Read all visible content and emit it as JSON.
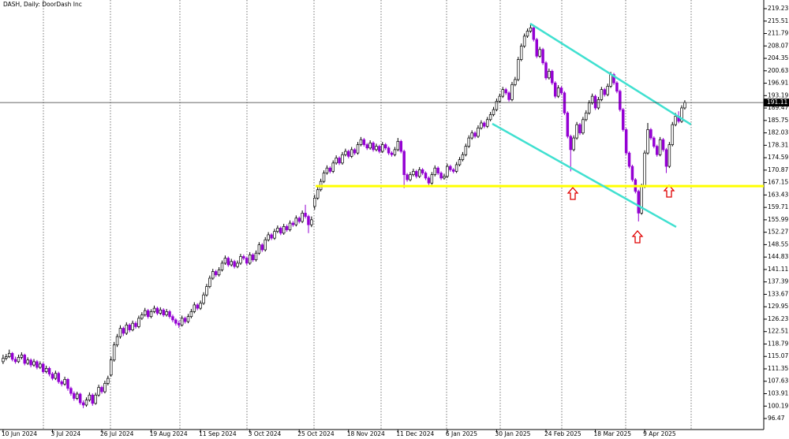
{
  "chart_data": {
    "type": "candlestick",
    "title": "DASH, Daily: DoorDash Inc",
    "up_color": "#ffffff",
    "down_color": "#9400d3",
    "wick_color": "#000000",
    "xlim": [
      -1,
      246.6
    ],
    "xticks": [
      {
        "value": 0,
        "label": "10 Jun 2024"
      },
      {
        "value": 16,
        "label": "3 Jul 2024"
      },
      {
        "value": 32,
        "label": "26 Jul 2024"
      },
      {
        "value": 48,
        "label": "19 Aug 2024"
      },
      {
        "value": 64,
        "label": "11 Sep 2024"
      },
      {
        "value": 80,
        "label": "3 Oct 2024"
      },
      {
        "value": 96,
        "label": "25 Oct 2024"
      },
      {
        "value": 112,
        "label": "18 Nov 2024"
      },
      {
        "value": 128,
        "label": "11 Dec 2024"
      },
      {
        "value": 144,
        "label": "6 Jan 2025"
      },
      {
        "value": 160,
        "label": "30 Jan 2025"
      },
      {
        "value": 176,
        "label": "24 Feb 2025"
      },
      {
        "value": 192,
        "label": "18 Mar 2025"
      },
      {
        "value": 208,
        "label": "9 Apr 2025"
      }
    ],
    "ylim": [
      93.17,
      221.83
    ],
    "yticks": [
      219.23,
      215.51,
      211.79,
      208.07,
      204.35,
      200.63,
      196.91,
      193.19,
      189.47,
      185.75,
      182.03,
      178.31,
      174.59,
      170.87,
      167.15,
      163.43,
      159.71,
      155.99,
      152.27,
      148.55,
      144.83,
      141.11,
      137.39,
      133.67,
      129.95,
      126.23,
      122.51,
      118.79,
      115.07,
      111.35,
      107.63,
      103.91,
      100.19,
      96.47
    ],
    "last_price": 191.11,
    "level": {
      "value": 166.1,
      "color": "#ffff00"
    },
    "trendlines": [
      {
        "color": "#40e0d0",
        "x": [
          170.9,
          223.0
        ],
        "y": [
          214.75,
          184.54
        ]
      },
      {
        "color": "#40e0d0",
        "x": [
          158.6,
          218.2
        ],
        "y": [
          184.77,
          153.85
        ]
      }
    ],
    "candles": [
      [
        113.5,
        115.6,
        112.8,
        114.5
      ],
      [
        114.5,
        115.8,
        113.9,
        115.0
      ],
      [
        115.0,
        117.1,
        114.6,
        116.0
      ],
      [
        116.0,
        116.4,
        113.6,
        114.2
      ],
      [
        114.2,
        115.0,
        112.9,
        113.5
      ],
      [
        113.5,
        115.6,
        113.1,
        114.8
      ],
      [
        114.8,
        116.3,
        114.2,
        115.5
      ],
      [
        115.5,
        115.9,
        112.4,
        113.0
      ],
      [
        113.0,
        114.8,
        112.5,
        114.0
      ],
      [
        114.0,
        114.5,
        111.8,
        112.5
      ],
      [
        112.5,
        114.3,
        112.0,
        113.5
      ],
      [
        113.5,
        114.0,
        111.2,
        111.8
      ],
      [
        111.8,
        113.6,
        111.3,
        112.8
      ],
      [
        112.8,
        113.2,
        109.9,
        110.5
      ],
      [
        110.5,
        112.3,
        110.0,
        111.5
      ],
      [
        111.5,
        112.0,
        109.1,
        109.8
      ],
      [
        109.8,
        110.4,
        107.9,
        108.5
      ],
      [
        108.5,
        110.8,
        108.0,
        110.0
      ],
      [
        110.0,
        110.5,
        106.9,
        107.5
      ],
      [
        107.5,
        108.0,
        106.1,
        106.8
      ],
      [
        106.8,
        109.0,
        106.3,
        108.2
      ],
      [
        108.2,
        108.6,
        104.8,
        105.5
      ],
      [
        105.5,
        106.0,
        103.3,
        104.0
      ],
      [
        104.0,
        104.6,
        101.8,
        102.5
      ],
      [
        102.5,
        104.5,
        102.0,
        103.8
      ],
      [
        103.8,
        104.2,
        100.6,
        101.2
      ],
      [
        101.2,
        101.9,
        99.6,
        100.5
      ],
      [
        100.5,
        102.8,
        100.0,
        102.0
      ],
      [
        102.0,
        104.3,
        101.5,
        103.5
      ],
      [
        103.5,
        104.0,
        100.3,
        101.0
      ],
      [
        101.0,
        104.2,
        100.6,
        103.5
      ],
      [
        103.5,
        106.6,
        103.0,
        105.8
      ],
      [
        105.8,
        106.3,
        103.9,
        104.5
      ],
      [
        104.5,
        107.8,
        104.0,
        107.0
      ],
      [
        107.0,
        109.3,
        106.4,
        108.5
      ],
      [
        109.5,
        115.0,
        109.0,
        114.0
      ],
      [
        114.0,
        119.4,
        113.5,
        118.5
      ],
      [
        118.5,
        121.8,
        117.9,
        121.0
      ],
      [
        121.0,
        124.4,
        120.4,
        123.5
      ],
      [
        123.5,
        124.0,
        121.2,
        122.0
      ],
      [
        122.0,
        125.3,
        121.5,
        124.5
      ],
      [
        124.5,
        125.0,
        122.3,
        123.0
      ],
      [
        123.0,
        125.8,
        122.6,
        125.0
      ],
      [
        125.0,
        125.6,
        123.4,
        124.0
      ],
      [
        124.0,
        127.3,
        123.5,
        126.5
      ],
      [
        126.5,
        128.3,
        126.0,
        127.5
      ],
      [
        127.5,
        129.6,
        127.0,
        128.8
      ],
      [
        128.8,
        129.3,
        126.4,
        127.0
      ],
      [
        127.0,
        129.2,
        126.5,
        128.5
      ],
      [
        128.5,
        130.3,
        128.0,
        129.5
      ],
      [
        129.5,
        130.0,
        127.4,
        128.0
      ],
      [
        128.0,
        129.8,
        127.5,
        129.0
      ],
      [
        129.0,
        129.5,
        126.9,
        127.5
      ],
      [
        127.5,
        129.3,
        127.0,
        128.5
      ],
      [
        128.5,
        129.0,
        126.4,
        127.0
      ],
      [
        127.0,
        127.6,
        125.3,
        126.0
      ],
      [
        126.0,
        126.5,
        124.3,
        125.0
      ],
      [
        125.0,
        125.8,
        123.6,
        124.5
      ],
      [
        124.5,
        127.3,
        124.0,
        126.5
      ],
      [
        126.5,
        127.0,
        124.9,
        125.5
      ],
      [
        125.5,
        127.8,
        125.0,
        127.0
      ],
      [
        127.0,
        129.3,
        126.5,
        128.5
      ],
      [
        128.5,
        131.3,
        128.0,
        130.5
      ],
      [
        130.5,
        131.0,
        128.9,
        129.5
      ],
      [
        129.5,
        131.8,
        129.0,
        131.0
      ],
      [
        131.0,
        134.3,
        130.5,
        133.5
      ],
      [
        133.5,
        136.8,
        133.0,
        136.0
      ],
      [
        136.0,
        139.3,
        135.5,
        138.5
      ],
      [
        138.5,
        141.3,
        138.0,
        140.5
      ],
      [
        140.5,
        141.0,
        138.9,
        139.5
      ],
      [
        139.5,
        141.8,
        139.0,
        141.0
      ],
      [
        141.0,
        143.8,
        140.5,
        143.0
      ],
      [
        143.0,
        145.3,
        142.5,
        144.5
      ],
      [
        144.5,
        145.0,
        141.9,
        142.5
      ],
      [
        142.5,
        144.3,
        142.0,
        143.5
      ],
      [
        143.5,
        144.0,
        141.4,
        142.0
      ],
      [
        142.0,
        143.8,
        141.5,
        143.0
      ],
      [
        143.0,
        145.8,
        142.5,
        145.0
      ],
      [
        145.0,
        145.6,
        143.9,
        144.5
      ],
      [
        144.5,
        145.0,
        142.4,
        143.0
      ],
      [
        143.0,
        146.3,
        142.5,
        145.5
      ],
      [
        145.5,
        146.0,
        143.4,
        144.0
      ],
      [
        144.0,
        146.8,
        143.5,
        146.0
      ],
      [
        146.0,
        149.3,
        145.5,
        148.5
      ],
      [
        148.5,
        149.0,
        146.4,
        147.0
      ],
      [
        147.0,
        150.8,
        146.5,
        150.0
      ],
      [
        150.0,
        152.3,
        149.5,
        151.5
      ],
      [
        151.5,
        152.0,
        149.9,
        150.5
      ],
      [
        150.5,
        153.3,
        150.0,
        152.5
      ],
      [
        152.5,
        154.3,
        152.0,
        153.5
      ],
      [
        153.5,
        154.0,
        151.4,
        152.0
      ],
      [
        152.0,
        154.8,
        151.5,
        154.0
      ],
      [
        154.0,
        154.6,
        152.4,
        153.0
      ],
      [
        153.0,
        155.8,
        152.5,
        155.0
      ],
      [
        155.0,
        155.6,
        153.9,
        154.5
      ],
      [
        154.5,
        157.3,
        154.0,
        156.5
      ],
      [
        156.5,
        157.0,
        154.9,
        155.5
      ],
      [
        155.5,
        158.8,
        155.0,
        158.0
      ],
      [
        158.0,
        160.5,
        156.4,
        157.0
      ],
      [
        157.0,
        157.5,
        152.0,
        154.5
      ],
      [
        154.5,
        157.0,
        153.8,
        156.0
      ],
      [
        160.0,
        163.5,
        159.0,
        162.5
      ],
      [
        162.5,
        165.8,
        162.0,
        165.0
      ],
      [
        165.0,
        168.3,
        164.5,
        167.5
      ],
      [
        167.5,
        170.8,
        167.0,
        170.0
      ],
      [
        170.0,
        172.3,
        169.5,
        171.5
      ],
      [
        171.5,
        172.0,
        169.9,
        170.5
      ],
      [
        170.5,
        173.8,
        170.0,
        173.0
      ],
      [
        173.0,
        175.3,
        172.5,
        174.5
      ],
      [
        174.5,
        175.0,
        172.4,
        173.0
      ],
      [
        173.0,
        176.3,
        172.5,
        175.5
      ],
      [
        175.5,
        177.3,
        175.0,
        176.5
      ],
      [
        176.5,
        177.0,
        174.4,
        175.0
      ],
      [
        175.0,
        177.8,
        174.5,
        177.0
      ],
      [
        177.0,
        177.5,
        175.4,
        176.0
      ],
      [
        176.0,
        179.3,
        175.5,
        178.5
      ],
      [
        178.5,
        180.8,
        178.0,
        180.0
      ],
      [
        180.0,
        180.5,
        177.9,
        178.5
      ],
      [
        178.5,
        179.0,
        176.9,
        177.5
      ],
      [
        177.5,
        179.8,
        177.0,
        179.0
      ],
      [
        179.0,
        179.5,
        176.4,
        177.0
      ],
      [
        177.0,
        178.8,
        176.5,
        178.0
      ],
      [
        178.0,
        178.5,
        175.9,
        176.5
      ],
      [
        176.5,
        179.3,
        176.0,
        178.5
      ],
      [
        178.5,
        179.0,
        176.9,
        177.5
      ],
      [
        177.5,
        178.0,
        175.4,
        176.0
      ],
      [
        176.0,
        176.5,
        174.9,
        175.5
      ],
      [
        175.5,
        177.8,
        175.0,
        177.0
      ],
      [
        177.0,
        180.5,
        176.5,
        179.5
      ],
      [
        179.5,
        180.0,
        175.9,
        176.5
      ],
      [
        176.5,
        177.0,
        165.5,
        169.5
      ],
      [
        169.5,
        170.0,
        167.4,
        168.0
      ],
      [
        168.0,
        170.3,
        167.5,
        169.5
      ],
      [
        169.5,
        171.3,
        169.0,
        170.5
      ],
      [
        170.5,
        171.0,
        168.4,
        169.0
      ],
      [
        169.0,
        171.8,
        168.5,
        171.0
      ],
      [
        171.0,
        171.5,
        169.4,
        170.0
      ],
      [
        170.0,
        170.5,
        167.9,
        168.5
      ],
      [
        168.5,
        169.0,
        166.2,
        167.0
      ],
      [
        167.0,
        170.3,
        166.5,
        169.5
      ],
      [
        169.5,
        172.3,
        169.0,
        171.5
      ],
      [
        171.5,
        172.0,
        169.4,
        170.0
      ],
      [
        170.0,
        170.5,
        167.9,
        168.5
      ],
      [
        168.5,
        169.8,
        168.0,
        169.0
      ],
      [
        169.0,
        172.8,
        168.5,
        172.0
      ],
      [
        172.0,
        172.5,
        170.4,
        171.0
      ],
      [
        171.0,
        171.5,
        169.9,
        170.5
      ],
      [
        170.5,
        173.3,
        170.0,
        172.5
      ],
      [
        172.5,
        174.8,
        172.0,
        174.0
      ],
      [
        174.0,
        176.3,
        173.5,
        175.5
      ],
      [
        175.5,
        178.8,
        175.0,
        178.0
      ],
      [
        178.0,
        181.3,
        177.5,
        180.5
      ],
      [
        180.5,
        182.8,
        180.0,
        182.0
      ],
      [
        182.0,
        182.5,
        180.4,
        181.0
      ],
      [
        181.0,
        184.3,
        180.5,
        183.5
      ],
      [
        183.5,
        185.8,
        183.0,
        185.0
      ],
      [
        185.0,
        185.5,
        183.4,
        184.0
      ],
      [
        184.0,
        186.8,
        183.5,
        186.0
      ],
      [
        186.0,
        188.3,
        185.5,
        187.5
      ],
      [
        187.5,
        189.8,
        187.0,
        189.0
      ],
      [
        189.0,
        192.3,
        188.5,
        191.5
      ],
      [
        191.5,
        193.8,
        191.0,
        193.0
      ],
      [
        193.0,
        195.8,
        192.5,
        195.0
      ],
      [
        195.0,
        195.5,
        193.4,
        194.0
      ],
      [
        194.0,
        194.5,
        191.4,
        192.0
      ],
      [
        192.0,
        197.3,
        191.5,
        196.5
      ],
      [
        196.5,
        198.8,
        196.0,
        198.0
      ],
      [
        198.0,
        204.8,
        197.5,
        204.0
      ],
      [
        204.0,
        208.8,
        203.5,
        208.0
      ],
      [
        208.0,
        211.8,
        207.5,
        211.0
      ],
      [
        211.0,
        213.3,
        210.5,
        212.5
      ],
      [
        212.5,
        214.8,
        212.0,
        213.5
      ],
      [
        213.5,
        214.0,
        209.4,
        210.0
      ],
      [
        210.0,
        210.5,
        204.4,
        205.0
      ],
      [
        205.0,
        207.8,
        204.5,
        207.0
      ],
      [
        207.0,
        207.5,
        202.4,
        203.0
      ],
      [
        203.0,
        203.5,
        197.9,
        198.5
      ],
      [
        198.5,
        201.3,
        198.0,
        200.5
      ],
      [
        200.5,
        201.0,
        196.4,
        197.0
      ],
      [
        197.0,
        197.5,
        192.4,
        193.0
      ],
      [
        193.0,
        196.3,
        192.5,
        195.5
      ],
      [
        195.5,
        196.0,
        193.4,
        194.0
      ],
      [
        194.0,
        194.5,
        187.4,
        188.0
      ],
      [
        188.0,
        188.5,
        180.4,
        181.0
      ],
      [
        181.0,
        181.5,
        170.5,
        177.0
      ],
      [
        177.0,
        181.3,
        176.5,
        180.5
      ],
      [
        180.5,
        185.3,
        180.0,
        184.5
      ],
      [
        184.5,
        185.0,
        181.4,
        182.0
      ],
      [
        182.0,
        186.8,
        181.5,
        186.0
      ],
      [
        186.0,
        188.8,
        185.5,
        188.0
      ],
      [
        188.0,
        191.8,
        187.5,
        191.0
      ],
      [
        191.0,
        193.8,
        190.5,
        193.0
      ],
      [
        193.0,
        193.5,
        188.9,
        189.5
      ],
      [
        189.5,
        192.8,
        189.0,
        192.0
      ],
      [
        192.0,
        195.8,
        191.5,
        195.0
      ],
      [
        195.0,
        195.5,
        192.9,
        193.5
      ],
      [
        193.5,
        196.8,
        193.0,
        196.0
      ],
      [
        196.0,
        200.3,
        195.5,
        199.5
      ],
      [
        199.5,
        200.0,
        196.4,
        197.0
      ],
      [
        197.0,
        197.5,
        193.9,
        194.5
      ],
      [
        194.5,
        195.0,
        188.4,
        189.0
      ],
      [
        189.0,
        189.5,
        182.4,
        183.0
      ],
      [
        183.0,
        183.5,
        175.4,
        176.0
      ],
      [
        176.0,
        176.5,
        171.4,
        172.0
      ],
      [
        172.0,
        172.5,
        167.4,
        168.0
      ],
      [
        168.0,
        168.5,
        163.9,
        164.5
      ],
      [
        164.5,
        165.0,
        155.5,
        158.0
      ],
      [
        158.0,
        166.8,
        157.5,
        166.0
      ],
      [
        166.0,
        176.8,
        165.5,
        176.0
      ],
      [
        176.0,
        185.0,
        175.5,
        183.0
      ],
      [
        183.0,
        183.5,
        179.9,
        180.5
      ],
      [
        180.5,
        181.0,
        177.4,
        178.0
      ],
      [
        178.0,
        178.5,
        174.9,
        175.5
      ],
      [
        175.5,
        180.8,
        175.0,
        180.0
      ],
      [
        180.0,
        180.5,
        176.4,
        177.0
      ],
      [
        177.0,
        177.5,
        170.0,
        172.0
      ],
      [
        172.0,
        179.3,
        171.5,
        178.5
      ],
      [
        178.5,
        185.3,
        178.0,
        184.5
      ],
      [
        184.5,
        188.0,
        184.0,
        187.0
      ],
      [
        187.0,
        188.5,
        184.9,
        185.5
      ],
      [
        185.5,
        190.3,
        185.0,
        189.5
      ],
      [
        189.5,
        191.8,
        189.0,
        191.11
      ]
    ]
  }
}
